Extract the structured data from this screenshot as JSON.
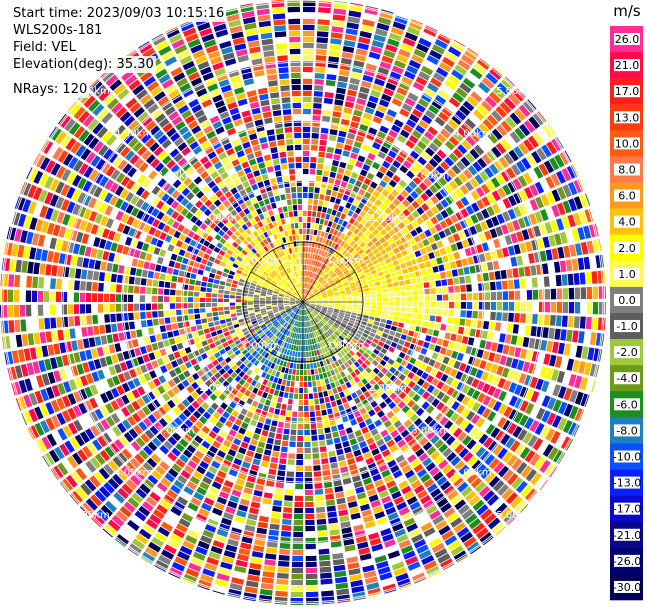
{
  "header": {
    "start_time": "Start time: 2023/09/03 10:15:16",
    "instrument": "WLS200s-181",
    "field": "Field: VEL",
    "elevation": "Elevation(deg): 35.30",
    "nrays": "NRays: 120"
  },
  "chart_data": {
    "type": "ppi",
    "field": "VEL",
    "units": "m/s",
    "n_rays": 120,
    "range_rings_km": [
      1.0,
      2.0,
      3.0,
      4.0,
      5.0,
      6.0
    ],
    "range_ring_labels": [
      "1.00km",
      "2.00km",
      "3.00km",
      "4.00km",
      "5.00km",
      "6.00km"
    ],
    "colorbar": {
      "label": "m/s",
      "ticks": [
        "26.0",
        "21.0",
        "17.0",
        "13.0",
        "10.0",
        "8.0",
        "6.0",
        "4.0",
        "2.0",
        "1.0",
        "0.0",
        "-1.0",
        "-2.0",
        "-4.0",
        "-6.0",
        "-8.0",
        "-10.0",
        "-13.0",
        "-17.0",
        "-21.0",
        "-26.0",
        "-30.0"
      ],
      "colors": [
        "#ff2e97",
        "#ff0a4a",
        "#ff1e1e",
        "#ff3b12",
        "#ff5a14",
        "#ff7a4a",
        "#ff9a1e",
        "#ffc20a",
        "#ffff00",
        "#fffa55",
        "#7f7f7f",
        "#5e5e5e",
        "#a0c83c",
        "#6e9a1a",
        "#1e8c1e",
        "#1f7fc0",
        "#0a50ff",
        "#0a1eff",
        "#0a0acd",
        "#08088a",
        "#000070",
        "#000055"
      ]
    },
    "near_field_pattern": [
      {
        "sector": "north-east",
        "velocity": 4.0
      },
      {
        "sector": "north",
        "velocity": 8.0
      },
      {
        "sector": "east",
        "velocity": 0.0
      },
      {
        "sector": "south-east",
        "velocity": -4.0
      },
      {
        "sector": "south",
        "velocity": -8.0
      },
      {
        "sector": "west",
        "velocity": 0.0
      }
    ]
  }
}
